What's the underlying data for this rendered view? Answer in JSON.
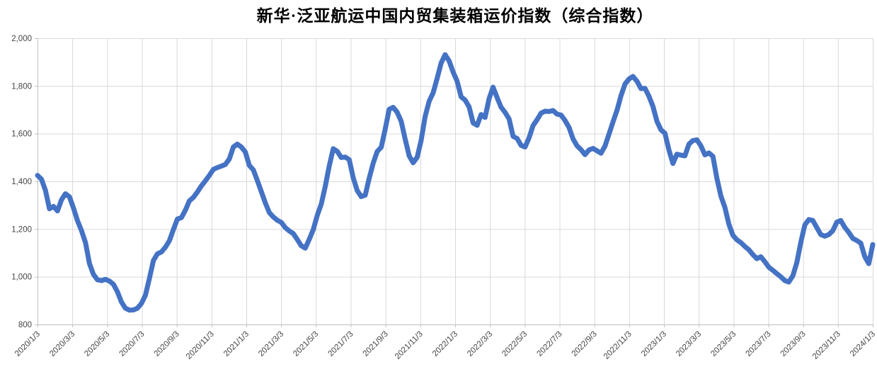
{
  "page": {
    "background": "#FFFFFF"
  },
  "chart_data": {
    "type": "line",
    "title": "新华·泛亚航运中国内贸集装箱运价指数（综合指数）",
    "xlabel": "",
    "ylabel": "",
    "ylim": [
      800,
      2000
    ],
    "y_ticks": [
      800,
      1000,
      1200,
      1400,
      1600,
      1800,
      2000
    ],
    "y_tick_labels": [
      "800",
      "1,000",
      "1,200",
      "1,400",
      "1,600",
      "1,800",
      "2,000"
    ],
    "x_tick_labels": [
      "2020/1/3",
      "2020/3/3",
      "2020/5/3",
      "2020/7/3",
      "2020/9/3",
      "2020/11/3",
      "2021/1/3",
      "2021/3/3",
      "2021/5/3",
      "2021/7/3",
      "2021/9/3",
      "2021/11/3",
      "2022/1/3",
      "2022/3/3",
      "2022/5/3",
      "2022/7/3",
      "2022/9/3",
      "2022/11/3",
      "2023/1/3",
      "2023/3/3",
      "2023/5/3",
      "2023/7/3",
      "2023/9/3",
      "2023/11/3",
      "2024/1/3"
    ],
    "x_label_rotation_deg": 45,
    "x_sampling": "weekly, evenly spaced from first to last tick",
    "grid": true,
    "legend": "none",
    "colors": {
      "series": "#4472C4",
      "gridline": "#D9D9D9",
      "axis": "#BFBFBF",
      "tick_label": "#444444",
      "title": "#000000"
    },
    "series": [
      {
        "name": "综合指数",
        "color": "#4472C4",
        "stroke_width_px": 7,
        "values": [
          1425,
          1409,
          1361,
          1285,
          1295,
          1276,
          1323,
          1348,
          1335,
          1288,
          1235,
          1194,
          1143,
          1055,
          1010,
          987,
          984,
          989,
          982,
          968,
          937,
          894,
          868,
          860,
          861,
          868,
          888,
          922,
          993,
          1068,
          1096,
          1104,
          1124,
          1151,
          1198,
          1242,
          1248,
          1279,
          1318,
          1333,
          1355,
          1381,
          1402,
          1425,
          1450,
          1458,
          1464,
          1471,
          1494,
          1544,
          1556,
          1544,
          1523,
          1467,
          1448,
          1404,
          1357,
          1310,
          1269,
          1251,
          1237,
          1228,
          1206,
          1192,
          1181,
          1156,
          1130,
          1120,
          1157,
          1198,
          1257,
          1305,
          1379,
          1465,
          1537,
          1526,
          1500,
          1502,
          1491,
          1415,
          1361,
          1336,
          1342,
          1413,
          1477,
          1525,
          1543,
          1619,
          1702,
          1710,
          1690,
          1652,
          1577,
          1507,
          1478,
          1501,
          1572,
          1673,
          1736,
          1771,
          1832,
          1896,
          1931,
          1905,
          1858,
          1820,
          1754,
          1741,
          1712,
          1645,
          1635,
          1680,
          1668,
          1747,
          1795,
          1751,
          1711,
          1689,
          1662,
          1589,
          1580,
          1551,
          1544,
          1582,
          1634,
          1658,
          1686,
          1694,
          1693,
          1697,
          1682,
          1678,
          1655,
          1626,
          1578,
          1549,
          1533,
          1512,
          1532,
          1538,
          1528,
          1518,
          1548,
          1598,
          1649,
          1698,
          1759,
          1808,
          1829,
          1840,
          1820,
          1789,
          1790,
          1757,
          1714,
          1652,
          1616,
          1602,
          1531,
          1475,
          1514,
          1510,
          1507,
          1556,
          1571,
          1574,
          1549,
          1511,
          1519,
          1505,
          1413,
          1338,
          1291,
          1221,
          1174,
          1155,
          1143,
          1127,
          1113,
          1093,
          1076,
          1084,
          1063,
          1040,
          1027,
          1013,
          1000,
          984,
          978,
          1004,
          1059,
          1145,
          1217,
          1240,
          1236,
          1206,
          1177,
          1170,
          1177,
          1193,
          1229,
          1236,
          1207,
          1186,
          1161,
          1152,
          1141,
          1085,
          1055,
          1135
        ]
      }
    ]
  }
}
